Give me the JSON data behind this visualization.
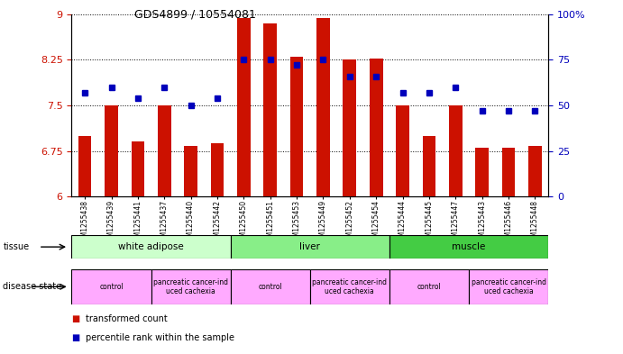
{
  "title": "GDS4899 / 10554081",
  "samples": [
    "GSM1255438",
    "GSM1255439",
    "GSM1255441",
    "GSM1255437",
    "GSM1255440",
    "GSM1255442",
    "GSM1255450",
    "GSM1255451",
    "GSM1255453",
    "GSM1255449",
    "GSM1255452",
    "GSM1255454",
    "GSM1255444",
    "GSM1255445",
    "GSM1255447",
    "GSM1255443",
    "GSM1255446",
    "GSM1255448"
  ],
  "red_values": [
    7.0,
    7.5,
    6.9,
    7.5,
    6.83,
    6.87,
    8.93,
    8.85,
    8.3,
    8.93,
    8.25,
    8.27,
    7.5,
    7.0,
    7.5,
    6.8,
    6.8,
    6.83
  ],
  "blue_values": [
    57,
    60,
    54,
    60,
    50,
    54,
    75,
    75,
    72,
    75,
    66,
    66,
    57,
    57,
    60,
    47,
    47,
    47
  ],
  "ylim_left": [
    6,
    9
  ],
  "ylim_right": [
    0,
    100
  ],
  "yticks_left": [
    6,
    6.75,
    7.5,
    8.25,
    9
  ],
  "yticks_right": [
    0,
    25,
    50,
    75,
    100
  ],
  "ytick_labels_left": [
    "6",
    "6.75",
    "7.5",
    "8.25",
    "9"
  ],
  "ytick_labels_right": [
    "0",
    "25",
    "50",
    "75",
    "100%"
  ],
  "bar_color": "#cc1100",
  "dot_color": "#0000bb",
  "tissue_groups": [
    {
      "label": "white adipose",
      "start": 0,
      "end": 6,
      "color": "#ccffcc"
    },
    {
      "label": "liver",
      "start": 6,
      "end": 12,
      "color": "#88ee88"
    },
    {
      "label": "muscle",
      "start": 12,
      "end": 18,
      "color": "#44cc44"
    }
  ],
  "disease_groups": [
    {
      "label": "control",
      "start": 0,
      "end": 3
    },
    {
      "label": "pancreatic cancer-ind\nuced cachexia",
      "start": 3,
      "end": 6
    },
    {
      "label": "control",
      "start": 6,
      "end": 9
    },
    {
      "label": "pancreatic cancer-ind\nuced cachexia",
      "start": 9,
      "end": 12
    },
    {
      "label": "control",
      "start": 12,
      "end": 15
    },
    {
      "label": "pancreatic cancer-ind\nuced cachexia",
      "start": 15,
      "end": 18
    }
  ],
  "disease_color": "#ffaaff",
  "legend_items": [
    {
      "label": "transformed count",
      "color": "#cc1100"
    },
    {
      "label": "percentile rank within the sample",
      "color": "#0000bb"
    }
  ],
  "bar_width": 0.5,
  "bg_color": "#ffffff",
  "plot_bg": "#ffffff"
}
